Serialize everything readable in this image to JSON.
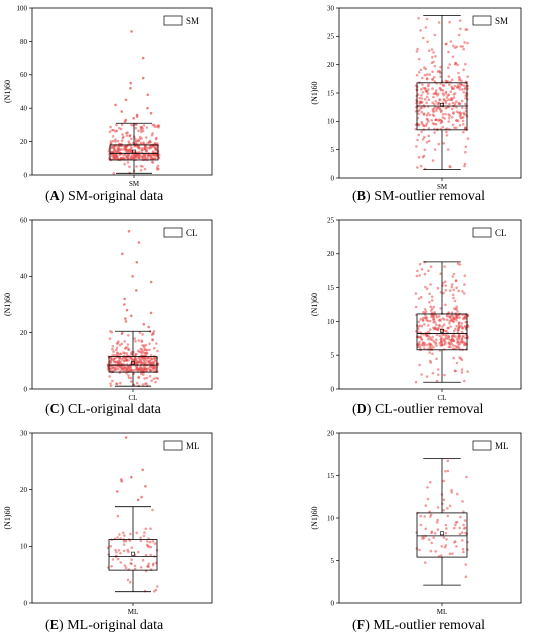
{
  "chart_data": [
    {
      "type": "box",
      "panel_letter": "A",
      "caption": "-original data",
      "category": "SM",
      "legend": "SM",
      "ylabel": "(N1)60",
      "ylim": [
        0,
        100
      ],
      "yticks": [
        0,
        20,
        40,
        60,
        80,
        100
      ],
      "box": {
        "q1": 9,
        "median": 13,
        "q3": 18,
        "whisker_low": 1,
        "whisker_high": 31,
        "mean": 14
      },
      "points": {
        "n": 380,
        "extreme_values": [
          86,
          70,
          58,
          55,
          52,
          48,
          45,
          42,
          40,
          38,
          37,
          36,
          35,
          34,
          33,
          32
        ]
      }
    },
    {
      "type": "box",
      "panel_letter": "B",
      "caption": "-outlier removal",
      "category": "SM",
      "legend": "SM",
      "ylabel": "(N1)60",
      "ylim": [
        0,
        30
      ],
      "yticks": [
        0,
        5,
        10,
        15,
        20,
        25,
        30
      ],
      "box": {
        "q1": 8.5,
        "median": 12.7,
        "q3": 16.8,
        "whisker_low": 1.5,
        "whisker_high": 28.7,
        "mean": 12.9
      },
      "points": {
        "n": 360,
        "extreme_values": []
      }
    },
    {
      "type": "box",
      "panel_letter": "C",
      "caption": "-original data",
      "category": "CL",
      "legend": "CL",
      "ylabel": "(N1)60",
      "ylim": [
        0,
        60
      ],
      "yticks": [
        0,
        20,
        40,
        60
      ],
      "box": {
        "q1": 6,
        "median": 8.5,
        "q3": 11.5,
        "whisker_low": 1,
        "whisker_high": 20.5,
        "mean": 9.3
      },
      "points": {
        "n": 400,
        "extreme_values": [
          56,
          52,
          48,
          45,
          40,
          38,
          35,
          32,
          30,
          28,
          27,
          26,
          25,
          24,
          23,
          22
        ]
      }
    },
    {
      "type": "box",
      "panel_letter": "D",
      "caption": "-outlier removal",
      "category": "CL",
      "legend": "CL",
      "ylabel": "(N1)60",
      "ylim": [
        0,
        25
      ],
      "yticks": [
        0,
        5,
        10,
        15,
        20,
        25
      ],
      "box": {
        "q1": 5.8,
        "median": 8.2,
        "q3": 11.1,
        "whisker_low": 1,
        "whisker_high": 18.8,
        "mean": 8.6
      },
      "points": {
        "n": 380,
        "extreme_values": []
      }
    },
    {
      "type": "box",
      "panel_letter": "E",
      "caption": "-original data",
      "category": "ML",
      "legend": "ML",
      "ylabel": "(N1)60",
      "ylim": [
        0,
        30
      ],
      "yticks": [
        0,
        10,
        20,
        30
      ],
      "box": {
        "q1": 5.8,
        "median": 8.2,
        "q3": 11.2,
        "whisker_low": 2,
        "whisker_high": 17,
        "mean": 8.7
      },
      "points": {
        "n": 90,
        "extreme_values": [
          29.2,
          23.5,
          22.2,
          21.8,
          21.5,
          20.6,
          19.7,
          18.7,
          18.2
        ]
      }
    },
    {
      "type": "box",
      "panel_letter": "F",
      "caption": "-outlier removal",
      "category": "ML",
      "legend": "ML",
      "ylabel": "(N1)60",
      "ylim": [
        0,
        20
      ],
      "yticks": [
        0,
        5,
        10,
        15,
        20
      ],
      "box": {
        "q1": 5.4,
        "median": 7.9,
        "q3": 10.6,
        "whisker_low": 2.1,
        "whisker_high": 17,
        "mean": 8.2
      },
      "points": {
        "n": 85,
        "extreme_values": []
      }
    }
  ],
  "colors": {
    "points": "#e84a4a",
    "box": "#000000"
  }
}
